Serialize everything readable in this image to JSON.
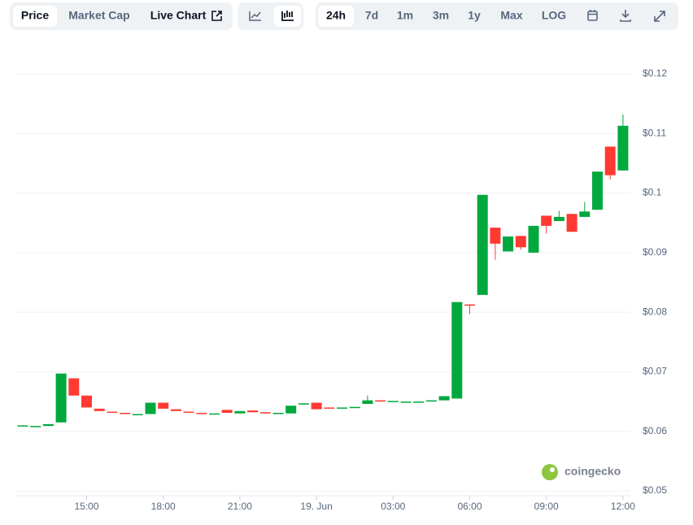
{
  "toolbar": {
    "tabs": [
      "Price",
      "Market Cap",
      "Live Chart"
    ],
    "ranges": [
      "24h",
      "7d",
      "1m",
      "3m",
      "1y",
      "Max",
      "LOG"
    ]
  },
  "watermark": "coingecko",
  "chart_data": {
    "type": "candlestick",
    "x": [
      "12:30",
      "13:00",
      "13:30",
      "14:00",
      "14:30",
      "15:00",
      "15:30",
      "16:00",
      "16:30",
      "17:00",
      "17:30",
      "18:00",
      "18:30",
      "19:00",
      "19:30",
      "20:00",
      "20:30",
      "21:00",
      "21:30",
      "22:00",
      "22:30",
      "23:00",
      "23:30",
      "00:00",
      "00:30",
      "01:00",
      "01:30",
      "02:00",
      "02:30",
      "03:00",
      "03:30",
      "04:00",
      "04:30",
      "05:00",
      "05:30",
      "06:00",
      "06:30",
      "07:00",
      "07:30",
      "08:00",
      "08:30",
      "09:00",
      "09:30",
      "10:00",
      "10:30",
      "11:00",
      "11:30",
      "12:00"
    ],
    "open": [
      0.061,
      0.0609,
      0.0609,
      0.0615,
      0.0689,
      0.066,
      0.0638,
      0.0633,
      0.0631,
      0.0629,
      0.0629,
      0.0648,
      0.0637,
      0.0633,
      0.0631,
      0.063,
      0.0636,
      0.063,
      0.0635,
      0.0632,
      0.0631,
      0.063,
      0.0645,
      0.0648,
      0.064,
      0.064,
      0.064,
      0.0646,
      0.0652,
      0.0651,
      0.065,
      0.0649,
      0.065,
      0.0652,
      0.0655,
      0.0813,
      0.0829,
      0.0942,
      0.0902,
      0.0928,
      0.09,
      0.0962,
      0.0953,
      0.0965,
      0.096,
      0.0972,
      0.1078,
      0.1038
    ],
    "high": [
      0.061,
      0.0609,
      0.0612,
      0.0697,
      0.0689,
      0.066,
      0.0638,
      0.0633,
      0.0631,
      0.0629,
      0.0648,
      0.0648,
      0.0637,
      0.0633,
      0.0631,
      0.063,
      0.0636,
      0.0634,
      0.0635,
      0.0632,
      0.0631,
      0.0643,
      0.0647,
      0.0648,
      0.064,
      0.064,
      0.0641,
      0.066,
      0.0652,
      0.0651,
      0.065,
      0.065,
      0.0652,
      0.0659,
      0.0817,
      0.0813,
      0.0997,
      0.0942,
      0.0927,
      0.0928,
      0.0945,
      0.0962,
      0.097,
      0.0965,
      0.0985,
      0.1036,
      0.1078,
      0.1132
    ],
    "low": [
      0.0609,
      0.0608,
      0.0609,
      0.0615,
      0.066,
      0.064,
      0.0634,
      0.0631,
      0.0629,
      0.0629,
      0.0629,
      0.0638,
      0.0634,
      0.0631,
      0.063,
      0.063,
      0.0631,
      0.063,
      0.0632,
      0.0631,
      0.0631,
      0.063,
      0.0645,
      0.0637,
      0.0638,
      0.064,
      0.064,
      0.0646,
      0.0651,
      0.0651,
      0.065,
      0.0649,
      0.065,
      0.0652,
      0.0655,
      0.0797,
      0.0829,
      0.0888,
      0.0902,
      0.0905,
      0.09,
      0.0932,
      0.0953,
      0.0935,
      0.096,
      0.0972,
      0.1023,
      0.1038
    ],
    "close": [
      0.061,
      0.0609,
      0.0612,
      0.0697,
      0.066,
      0.064,
      0.0634,
      0.0631,
      0.0629,
      0.0629,
      0.0648,
      0.0638,
      0.0634,
      0.0631,
      0.063,
      0.063,
      0.0631,
      0.0634,
      0.0632,
      0.0631,
      0.0631,
      0.0643,
      0.0647,
      0.0637,
      0.0638,
      0.064,
      0.0641,
      0.0652,
      0.0651,
      0.0651,
      0.065,
      0.065,
      0.0652,
      0.0659,
      0.0817,
      0.0811,
      0.0997,
      0.0915,
      0.0927,
      0.0909,
      0.0945,
      0.0945,
      0.096,
      0.0935,
      0.0969,
      0.1036,
      0.103,
      0.1113
    ],
    "up_color": "#00a83e",
    "down_color": "#ff3a33",
    "ylim": [
      0.05,
      0.12
    ],
    "yticks": [
      {
        "value": 0.05,
        "label": "$0.05"
      },
      {
        "value": 0.06,
        "label": "$0.06"
      },
      {
        "value": 0.07,
        "label": "$0.07"
      },
      {
        "value": 0.08,
        "label": "$0.08"
      },
      {
        "value": 0.09,
        "label": "$0.09"
      },
      {
        "value": 0.1,
        "label": "$0.1"
      },
      {
        "value": 0.11,
        "label": "$0.11"
      },
      {
        "value": 0.12,
        "label": "$0.12"
      }
    ],
    "xticks": [
      "15:00",
      "18:00",
      "21:00",
      {
        "value": "00:00",
        "label": "19. Jun"
      },
      "03:00",
      "06:00",
      "09:00",
      "12:00"
    ],
    "grid": true
  }
}
